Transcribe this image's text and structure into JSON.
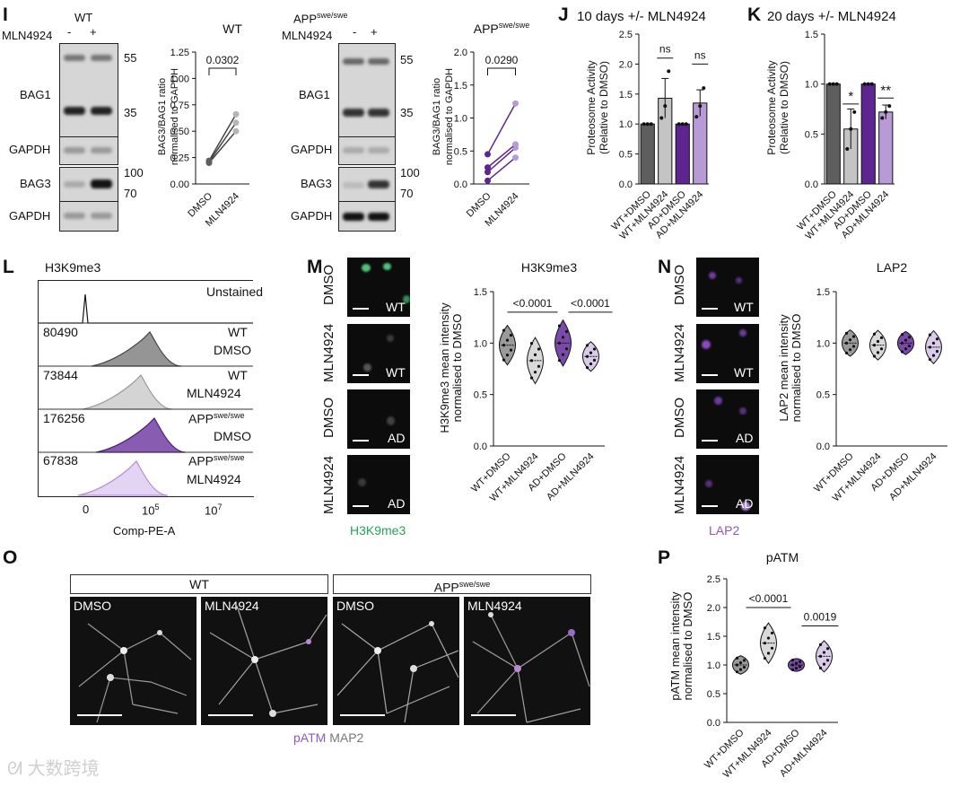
{
  "panels": {
    "I": {
      "label": "I",
      "wt": {
        "title": "WT",
        "treatment_label": "MLN4924",
        "lanes": [
          "-",
          "+"
        ],
        "blot_labels": [
          "BAG1",
          "GAPDH",
          "BAG3",
          "GAPDH"
        ],
        "mw": [
          "55",
          "35",
          "100",
          "70"
        ]
      },
      "app": {
        "title_main": "APP",
        "title_sup": "swe/swe",
        "treatment_label": "MLN4924",
        "lanes": [
          "-",
          "+"
        ],
        "blot_labels": [
          "BAG1",
          "GAPDH",
          "BAG3",
          "GAPDH"
        ],
        "mw": [
          "55",
          "35",
          "100",
          "70"
        ]
      }
    },
    "J": {
      "label": "J",
      "title": "10 days +/- MLN4924"
    },
    "K": {
      "label": "K",
      "title": "20 days +/- MLN4924"
    },
    "L": {
      "label": "L",
      "title": "H3K9me3",
      "xlabel": "Comp-PE-A",
      "rows": [
        {
          "value": "",
          "name": "Unstained",
          "name2": "",
          "sup": ""
        },
        {
          "value": "80490",
          "name": "WT",
          "name2": "DMSO",
          "sup": ""
        },
        {
          "value": "73844",
          "name": "WT",
          "name2": "MLN4924",
          "sup": ""
        },
        {
          "value": "176256",
          "name": "APP",
          "name2": "DMSO",
          "sup": "swe/swe"
        },
        {
          "value": "67838",
          "name": "APP",
          "name2": "MLN4924",
          "sup": "swe/swe"
        }
      ],
      "ticks": [
        "0",
        "10",
        "10"
      ],
      "tick_exp": [
        "",
        "5",
        "7"
      ]
    },
    "M": {
      "label": "M",
      "channel": "H3K9me3",
      "row_labels": [
        "DMSO",
        "MLN4924",
        "DMSO",
        "MLN4924"
      ],
      "tags": [
        "WT",
        "WT",
        "AD",
        "AD"
      ]
    },
    "N": {
      "label": "N",
      "channel": "LAP2",
      "row_labels": [
        "DMSO",
        "MLN4924",
        "DMSO",
        "MLN4924"
      ],
      "tags": [
        "WT",
        "WT",
        "AD",
        "AD"
      ]
    },
    "O": {
      "label": "O",
      "group_wt": "WT",
      "group_app": "APP",
      "group_app_sup": "swe/swe",
      "conditions": [
        "DMSO",
        "MLN4924",
        "DMSO",
        "MLN4924"
      ],
      "legend_a": "pATM",
      "legend_b": "MAP2"
    },
    "P": {
      "label": "P",
      "title": "pATM"
    }
  },
  "colors": {
    "wt_dmso": "#5e5e5e",
    "wt_mln": "#c4c4c4",
    "ad_dmso": "#5e2590",
    "ad_mln": "#b79ad6",
    "green": "#27a35a",
    "purple": "#8e58c0"
  },
  "watermark": "大数跨境",
  "chart_data": [
    {
      "id": "I-WT",
      "type": "scatter",
      "title": "WT",
      "categories": [
        "DMSO",
        "MLN4924"
      ],
      "ylabel": "BAG3/BAG1 ratio normalised to GAPDH",
      "ylim": [
        0,
        1.25
      ],
      "yticks": [
        "0.00",
        "0.25",
        "0.50",
        "0.75",
        "1.00",
        "1.25"
      ],
      "pairs": [
        [
          0.2,
          0.5
        ],
        [
          0.21,
          0.58
        ],
        [
          0.22,
          0.66
        ]
      ],
      "annotation": "0.0302"
    },
    {
      "id": "I-APP",
      "type": "scatter",
      "title": "APP",
      "title_sup": "swe/swe",
      "categories": [
        "DMSO",
        "MLN4924"
      ],
      "ylabel": "BAG3/BAG1 ratio normalised to GAPDH",
      "ylim": [
        0,
        2.0
      ],
      "yticks": [
        "0.0",
        "0.5",
        "1.0",
        "1.5",
        "2.0"
      ],
      "pairs": [
        [
          0.05,
          0.4
        ],
        [
          0.18,
          0.55
        ],
        [
          0.25,
          0.6
        ],
        [
          0.45,
          1.22
        ]
      ],
      "annotation": "0.0290"
    },
    {
      "id": "J",
      "type": "bar",
      "categories": [
        "WT+DMSO",
        "WT+MLN4924",
        "AD+DMSO",
        "AD+MLN4924"
      ],
      "values": [
        1.0,
        1.43,
        1.0,
        1.35
      ],
      "errors": [
        0,
        0.33,
        0,
        0.22
      ],
      "points": [
        [
          1,
          1,
          1
        ],
        [
          1.1,
          1.3,
          1.88
        ],
        [
          1,
          1,
          1
        ],
        [
          1.12,
          1.3,
          1.6
        ]
      ],
      "ylabel": "Proteosome Activity (Relative to DMSO)",
      "ylim": [
        0,
        2.5
      ],
      "yticks": [
        "0.0",
        "0.5",
        "1.0",
        "1.5",
        "2.0",
        "2.5"
      ],
      "annotations": [
        "ns",
        "ns"
      ]
    },
    {
      "id": "K",
      "type": "bar",
      "categories": [
        "WT+DMSO",
        "WT+MLN4924",
        "AD+DMSO",
        "AD+MLN4924"
      ],
      "values": [
        1.0,
        0.55,
        1.0,
        0.72
      ],
      "errors": [
        0,
        0.2,
        0,
        0.07
      ],
      "points": [
        [
          1,
          1,
          1
        ],
        [
          0.35,
          0.55,
          0.72
        ],
        [
          1,
          1,
          1
        ],
        [
          0.66,
          0.72,
          0.78
        ]
      ],
      "ylabel": "Proteosome Activity (Relative to DMSO)",
      "ylim": [
        0,
        1.5
      ],
      "yticks": [
        "0.0",
        "0.5",
        "1.0",
        "1.5"
      ],
      "annotations": [
        "*",
        "**"
      ]
    },
    {
      "id": "M",
      "type": "violin",
      "title": "H3K9me3",
      "categories": [
        "WT+DMSO",
        "WT+MLN4924",
        "AD+DMSO",
        "AD+MLN4924"
      ],
      "medians": [
        0.98,
        0.83,
        1.0,
        0.87
      ],
      "spreads": [
        0.12,
        0.14,
        0.14,
        0.09
      ],
      "ylabel": "H3K9me3 mean intensity normalised to DMSO",
      "ylim": [
        0,
        1.5
      ],
      "yticks": [
        "0.0",
        "0.5",
        "1.0",
        "1.5"
      ],
      "annotations": [
        "<0.0001",
        "<0.0001"
      ]
    },
    {
      "id": "N",
      "type": "violin",
      "title": "LAP2",
      "categories": [
        "WT+DMSO",
        "WT+MLN4924",
        "AD+DMSO",
        "AD+MLN4924"
      ],
      "medians": [
        1.0,
        0.98,
        1.0,
        0.96
      ],
      "spreads": [
        0.08,
        0.09,
        0.07,
        0.1
      ],
      "ylabel": "LAP2 mean intensity normalised to DMSO",
      "ylim": [
        0,
        1.5
      ],
      "yticks": [
        "0.0",
        "0.5",
        "1.0",
        "1.5"
      ]
    },
    {
      "id": "P",
      "type": "violin",
      "title": "pATM",
      "categories": [
        "WT+DMSO",
        "WT+MLN4924",
        "AD+DMSO",
        "AD+MLN4924"
      ],
      "medians": [
        1.0,
        1.38,
        1.0,
        1.15
      ],
      "spreads": [
        0.1,
        0.22,
        0.07,
        0.17
      ],
      "ylabel": "pATM mean intensity normalised to DMSO",
      "ylim": [
        0,
        2.5
      ],
      "yticks": [
        "0.0",
        "0.5",
        "1.0",
        "1.5",
        "2.0",
        "2.5"
      ],
      "annotations": [
        "<0.0001",
        "0.0019"
      ]
    }
  ]
}
